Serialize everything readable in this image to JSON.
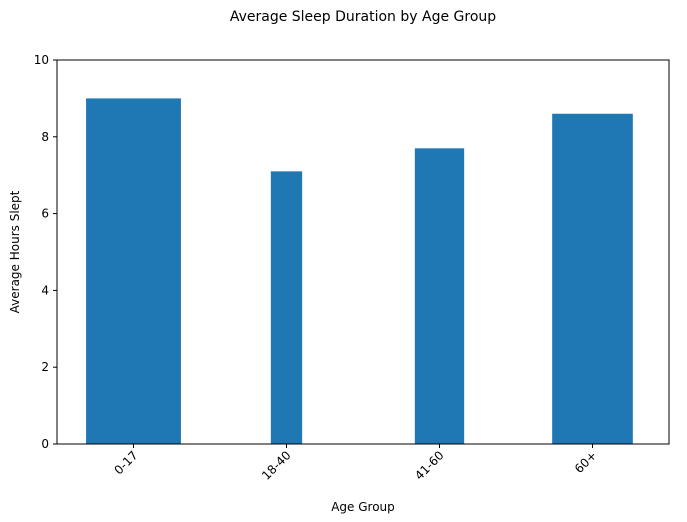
{
  "chart_data": {
    "type": "bar",
    "title": "Average Sleep Duration by Age Group",
    "xlabel": "Age Group",
    "ylabel": "Average Hours Slept",
    "categories": [
      "0-17",
      "18-40",
      "41-60",
      "60+"
    ],
    "values": [
      9.0,
      7.1,
      7.7,
      8.6
    ],
    "bar_width_fraction": [
      1.0,
      0.33,
      0.52,
      0.85
    ],
    "ylim": [
      0,
      10
    ],
    "yticks": [
      0,
      2,
      4,
      6,
      8,
      10
    ],
    "grid": false,
    "bar_color": "#1f77b4"
  }
}
